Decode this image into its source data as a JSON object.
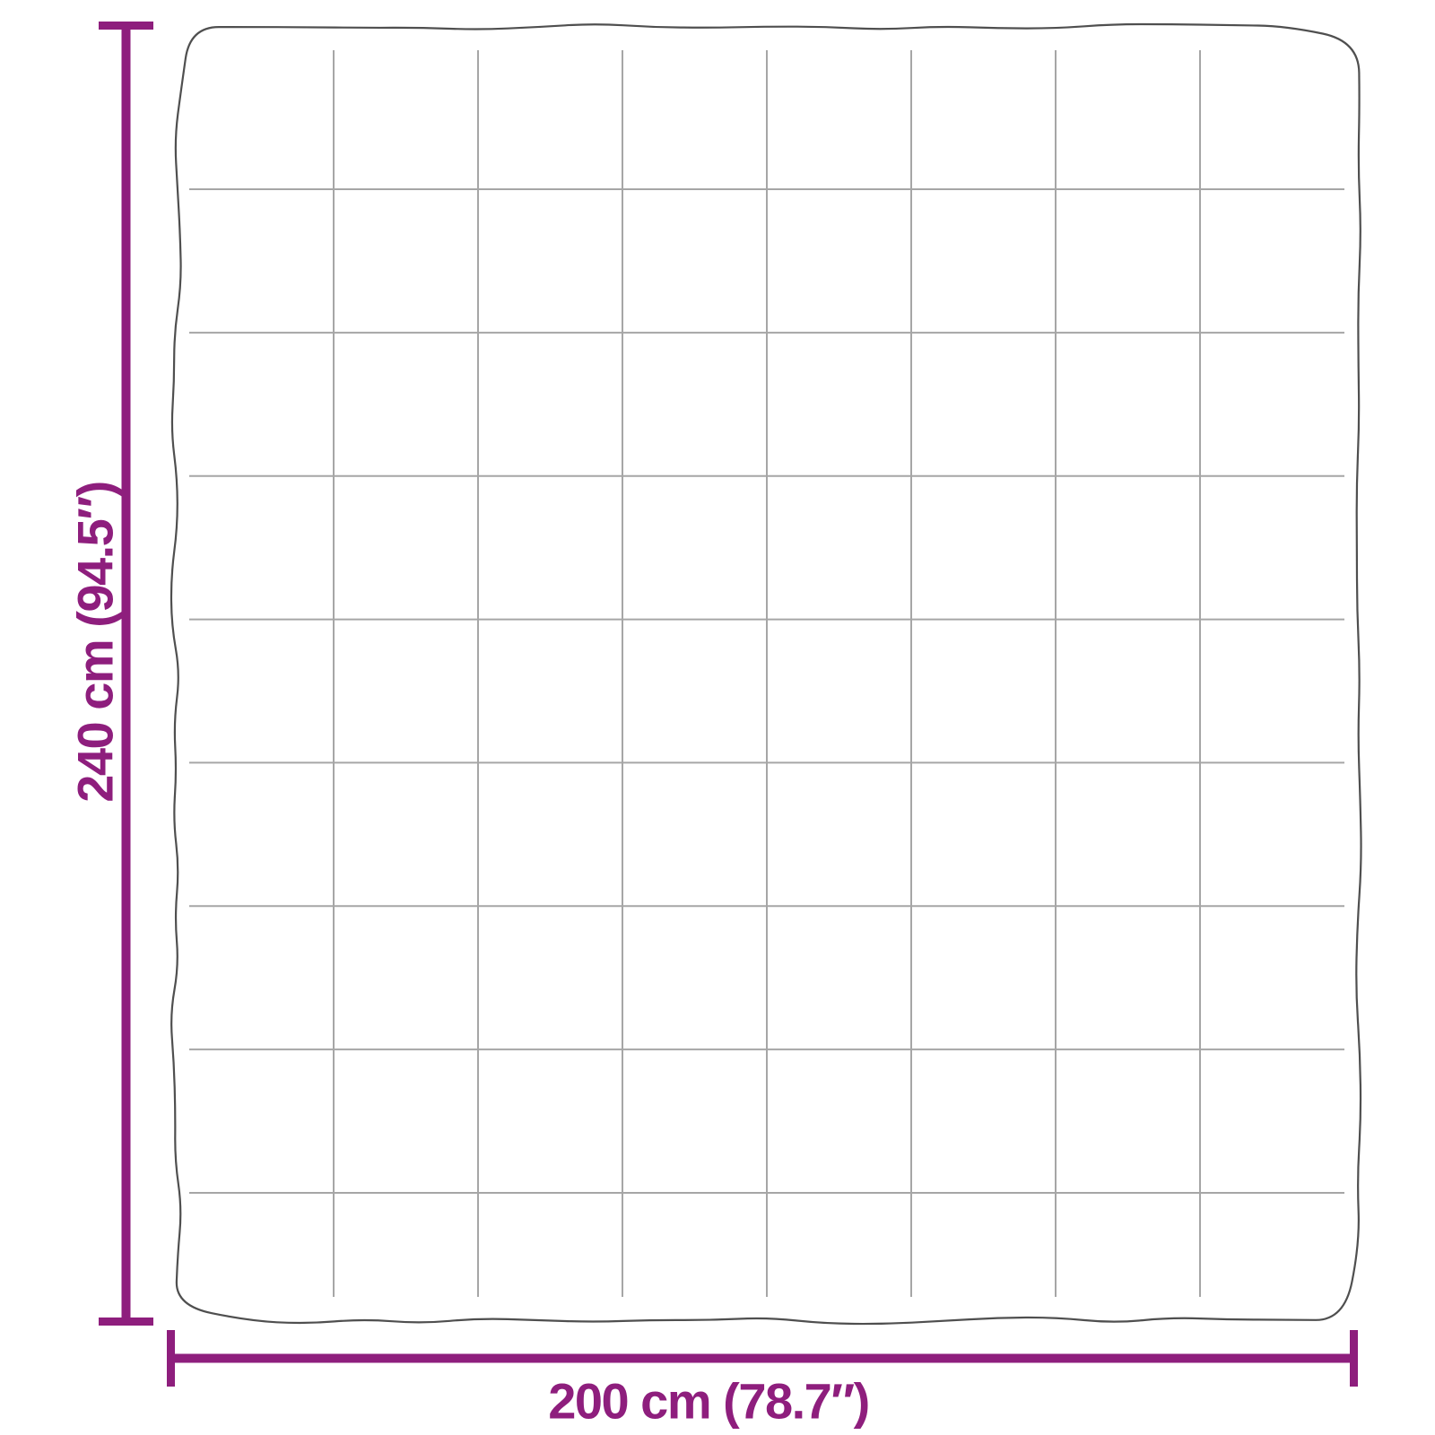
{
  "diagram": {
    "title": "blanket-dimension-diagram",
    "blanket": {
      "grid": {
        "columns": 8,
        "rows": 9
      }
    },
    "height_dimension": {
      "label": "240 cm (94.5″)",
      "value_cm": 240,
      "value_inches": 94.5
    },
    "width_dimension": {
      "label": "200 cm (78.7″)",
      "value_cm": 200,
      "value_inches": 78.7
    }
  },
  "colors": {
    "accent": "#8e1e7d",
    "outline": "#4f4f4f",
    "grid_line": "#a6a6a6",
    "background": "#ffffff"
  }
}
